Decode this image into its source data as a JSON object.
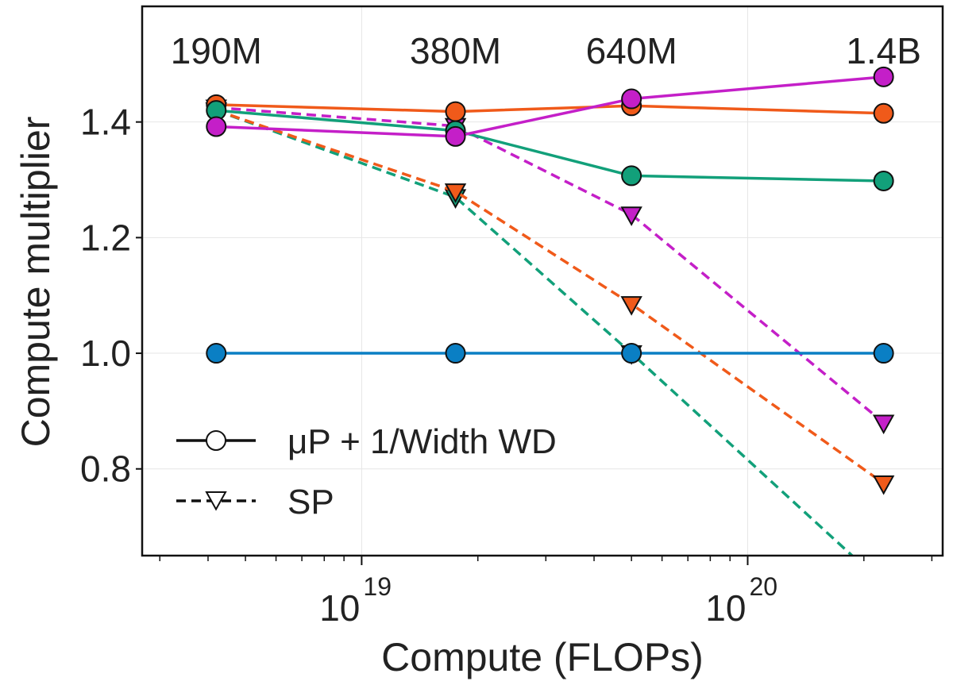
{
  "chart_data": {
    "type": "line",
    "xlabel": "Compute (FLOPs)",
    "ylabel": "Compute multiplier",
    "x_scale": "log",
    "xlim": [
      2.7e+18,
      3.2e+20
    ],
    "ylim": [
      0.65,
      1.6
    ],
    "grid": true,
    "x_major_ticks": [
      {
        "value": 1e+19,
        "base": "10",
        "exp": "19"
      },
      {
        "value": 1e+20,
        "base": "10",
        "exp": "20"
      }
    ],
    "y_ticks": [
      {
        "value": 0.8,
        "label": "0.8"
      },
      {
        "value": 1.0,
        "label": "1.0"
      },
      {
        "value": 1.2,
        "label": "1.2"
      },
      {
        "value": 1.4,
        "label": "1.4"
      }
    ],
    "top_labels": [
      {
        "x": 4.2e+18,
        "label": "190M"
      },
      {
        "x": 1.75e+19,
        "label": "380M"
      },
      {
        "x": 5e+19,
        "label": "640M"
      },
      {
        "x": 2.25e+20,
        "label": "1.4B"
      }
    ],
    "x": [
      4.2e+18,
      1.75e+19,
      5e+19,
      2.25e+20
    ],
    "legend": {
      "placement": "lower-left",
      "entries": [
        {
          "label": "μP + 1/Width WD",
          "style": "solid",
          "marker": "circle"
        },
        {
          "label": "SP",
          "style": "dashed",
          "marker": "triangle-down"
        }
      ]
    },
    "series": [
      {
        "style": "solid",
        "marker": "circle",
        "color": "#0a7fc4",
        "values": [
          1.0,
          1.0,
          1.0,
          1.0
        ]
      },
      {
        "style": "solid",
        "marker": "circle",
        "color": "#f05a1a",
        "values": [
          1.43,
          1.418,
          1.428,
          1.415
        ]
      },
      {
        "style": "solid",
        "marker": "circle",
        "color": "#12a07a",
        "values": [
          1.42,
          1.385,
          1.307,
          1.298
        ]
      },
      {
        "style": "solid",
        "marker": "circle",
        "color": "#c41fc8",
        "values": [
          1.392,
          1.375,
          1.44,
          1.478
        ]
      },
      {
        "style": "dashed",
        "marker": "triangle-down",
        "color": "#12a07a",
        "values": [
          1.42,
          1.27,
          1.0,
          0.6
        ]
      },
      {
        "style": "dashed",
        "marker": "triangle-down",
        "color": "#f05a1a",
        "values": [
          1.42,
          1.28,
          1.085,
          0.775
        ]
      },
      {
        "style": "dashed",
        "marker": "triangle-down",
        "color": "#c41fc8",
        "values": [
          1.425,
          1.393,
          1.24,
          0.88
        ]
      }
    ]
  }
}
